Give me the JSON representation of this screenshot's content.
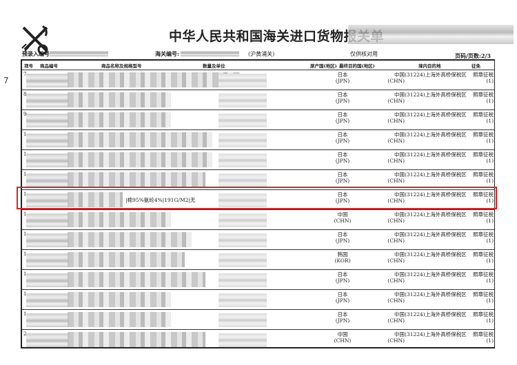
{
  "document": {
    "title": "中华人民共和国海关进口货物报关单",
    "pre_entry_label": "预录入编号:",
    "customs_no_label": "海关编号:",
    "customs_office": "(沪黄浦关)",
    "watermark_note": "仅供核对用",
    "page_info": "页码/页数:2/3",
    "handwritten_mark": "7"
  },
  "table": {
    "headers": [
      "项号",
      "商品编号",
      "商品名称及规格型号",
      "数量及单位",
      "原产国(地区)",
      "最终目的国(地区)",
      "境内目的地",
      "征免"
    ],
    "rows": [
      {
        "item": "7",
        "origin": "日本",
        "origin_code": "(JPN)",
        "dest": "中国",
        "dest_code": "(CHN)",
        "domestic": "(31224)上海外高桥保税区",
        "levy": "照章征税",
        "levy_code": "(1)"
      },
      {
        "item": "8",
        "origin": "日本",
        "origin_code": "(JPN)",
        "dest": "中国",
        "dest_code": "(CHN)",
        "domestic": "(31224)上海外高桥保税区",
        "levy": "照章征税",
        "levy_code": "(1)"
      },
      {
        "item": "9",
        "origin": "日本",
        "origin_code": "(JPN)",
        "dest": "中国",
        "dest_code": "(CHN)",
        "domestic": "(31224)上海外高桥保税区",
        "levy": "照章征税",
        "levy_code": "(1)"
      },
      {
        "item": "1",
        "origin": "日本",
        "origin_code": "(JPN)",
        "dest": "中国",
        "dest_code": "(CHN)",
        "domestic": "(31224)上海外高桥保税区",
        "levy": "照章征税",
        "levy_code": "(1)"
      },
      {
        "item": "1",
        "origin": "日本",
        "origin_code": "(JPN)",
        "dest": "中国",
        "dest_code": "(CHN)",
        "domestic": "(31224)上海外高桥保税区",
        "levy": "照章征税",
        "levy_code": "(1)"
      },
      {
        "item": "1",
        "origin": "日本",
        "origin_code": "(JPN)",
        "dest": "中国",
        "dest_code": "(CHN)",
        "domestic": "(31224)上海外高桥保税区",
        "levy": "照章征税",
        "levy_code": "(1)"
      },
      {
        "item": "1",
        "origin": "日本",
        "origin_code": "(JPN)",
        "dest": "中国",
        "dest_code": "(CHN)",
        "domestic": "(31224)上海外高桥保税区",
        "levy": "照章征税",
        "levy_code": "(1)",
        "spec": "|棉95%氨纶4%|191G/M2|无",
        "highlighted": true
      },
      {
        "item": "1",
        "origin": "中国",
        "origin_code": "(CHN)",
        "dest": "中国",
        "dest_code": "(CHN)",
        "domestic": "(31224)上海外高桥保税区",
        "levy": "照章征税",
        "levy_code": "(1)"
      },
      {
        "item": "1",
        "origin": "日本",
        "origin_code": "(JPN)",
        "dest": "中国",
        "dest_code": "(CHN)",
        "domestic": "(31224)上海外高桥保税区",
        "levy": "照章征税",
        "levy_code": "(1)"
      },
      {
        "item": "1",
        "origin": "韩国",
        "origin_code": "(KOR)",
        "dest": "中国",
        "dest_code": "(CHN)",
        "domestic": "(31224)上海外高桥保税区",
        "levy": "照章征税",
        "levy_code": "(1)"
      },
      {
        "item": "1",
        "origin": "日本",
        "origin_code": "(JPN)",
        "dest": "中国",
        "dest_code": "(CHN)",
        "domestic": "(31224)上海外高桥保税区",
        "levy": "照章征税",
        "levy_code": "(1)"
      },
      {
        "item": "1",
        "origin": "日本",
        "origin_code": "(JPN)",
        "dest": "中国",
        "dest_code": "(CHN)",
        "domestic": "(31224)上海外高桥保税区",
        "levy": "照章征税",
        "levy_code": "(1)"
      },
      {
        "item": "1",
        "origin": "日本",
        "origin_code": "(JPN)",
        "dest": "中国",
        "dest_code": "(CHN)",
        "domestic": "(31224)上海外高桥保税区",
        "levy": "照章征税",
        "levy_code": "(1)"
      },
      {
        "item": "2",
        "origin": "中国",
        "origin_code": "(CHN)",
        "dest": "中国",
        "dest_code": "(CHN)",
        "domestic": "(31224)上海外高桥保税区",
        "levy": "照章征税",
        "levy_code": "(1)"
      }
    ]
  },
  "colors": {
    "highlight": "#e02020",
    "ink": "#222222"
  }
}
